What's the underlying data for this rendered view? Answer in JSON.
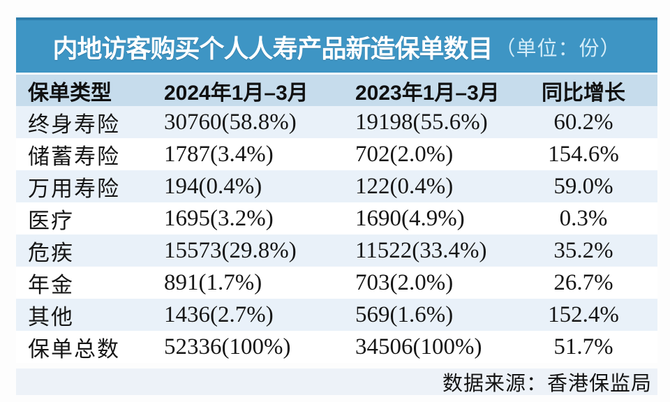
{
  "title": {
    "main": "内地访客购买个人人寿产品新造保单数目",
    "unit": "（单位：份）"
  },
  "source_note": "数据来源：香港保监局",
  "colors": {
    "title_bar": "#3e95c4",
    "title_bar_top_edge": "#2e7dab",
    "title_unit_text": "#d3ecf8",
    "header_bg": "#c6dcec",
    "stripe_bg": "#e9f1f9",
    "footer_bg": "#edf2f8",
    "text": "#161616"
  },
  "chart_data": {
    "type": "table",
    "title": "内地访客购买个人人寿产品新造保单数目",
    "unit": "份",
    "columns": [
      "保单类型",
      "2024年1月–3月",
      "2023年1月–3月",
      "同比增长"
    ],
    "rows": [
      [
        "终身寿险",
        "30760(58.8%)",
        "19198(55.6%)",
        "60.2%"
      ],
      [
        "储蓄寿险",
        "1787(3.4%)",
        "702(2.0%)",
        "154.6%"
      ],
      [
        "万用寿险",
        "194(0.4%)",
        "122(0.4%)",
        "59.0%"
      ],
      [
        "医疗",
        "1695(3.2%)",
        "1690(4.9%)",
        "0.3%"
      ],
      [
        "危疾",
        "15573(29.8%)",
        "11522(33.4%)",
        "35.2%"
      ],
      [
        "年金",
        "891(1.7%)",
        "703(2.0%)",
        "26.7%"
      ],
      [
        "其他",
        "1436(2.7%)",
        "569(1.6%)",
        "152.4%"
      ],
      [
        "保单总数",
        "52336(100%)",
        "34506(100%)",
        "51.7%"
      ]
    ],
    "values_2024": [
      30760,
      1787,
      194,
      1695,
      15573,
      891,
      1436,
      52336
    ],
    "shares_2024_pct": [
      58.8,
      3.4,
      0.4,
      3.2,
      29.8,
      1.7,
      2.7,
      100
    ],
    "values_2023": [
      19198,
      702,
      122,
      1690,
      11522,
      703,
      569,
      34506
    ],
    "shares_2023_pct": [
      55.6,
      2.0,
      0.4,
      4.9,
      33.4,
      2.0,
      1.6,
      100
    ],
    "yoy_growth_pct": [
      60.2,
      154.6,
      59.0,
      0.3,
      35.2,
      26.7,
      152.4,
      51.7
    ],
    "source": "数据来源：香港保监局"
  }
}
